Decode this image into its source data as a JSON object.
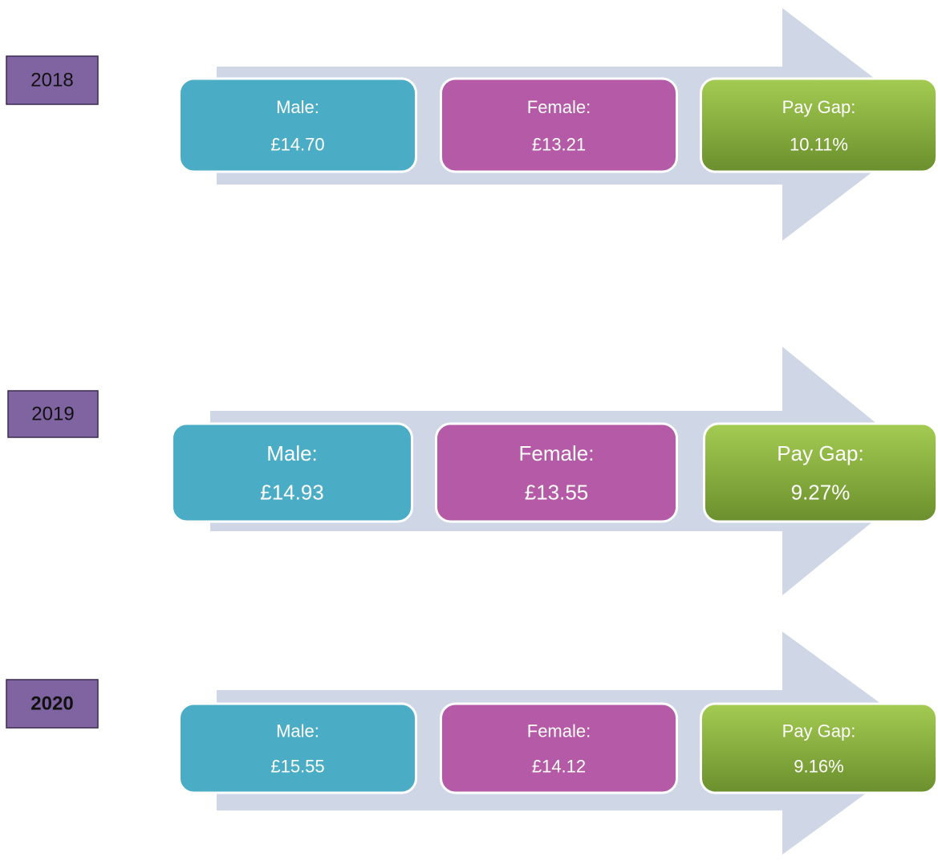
{
  "rows": [
    {
      "year": "2018",
      "boxes": [
        {
          "label": "Male:",
          "value": "£14.70"
        },
        {
          "label": "Female:",
          "value": "£13.21"
        },
        {
          "label": "Pay Gap:",
          "value": "10.11%"
        }
      ]
    },
    {
      "year": "2019",
      "boxes": [
        {
          "label": "Male:",
          "value": "£14.93"
        },
        {
          "label": "Female:",
          "value": "£13.55"
        },
        {
          "label": "Pay Gap:",
          "value": "9.27%"
        }
      ]
    },
    {
      "year": "2020",
      "boxes": [
        {
          "label": "Male:",
          "value": "£15.55"
        },
        {
          "label": "Female:",
          "value": "£14.12"
        },
        {
          "label": "Pay Gap:",
          "value": "9.16%"
        }
      ]
    }
  ]
}
